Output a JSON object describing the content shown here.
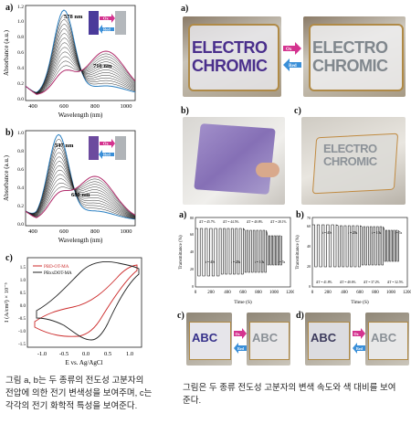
{
  "left": {
    "panel_a": {
      "label": "a)",
      "ylabel": "Absorbance (a.u.)",
      "xlabel": "Wavelength (nm)",
      "peak1": "578 nm",
      "peak2": "716 nm",
      "ox": "Ox",
      "red": "Red",
      "xticks": [
        "400",
        "600",
        "800",
        "1000"
      ],
      "yticks": [
        "0.0",
        "0.2",
        "0.4",
        "0.6",
        "0.8",
        "1.0",
        "1.2"
      ]
    },
    "panel_b": {
      "label": "b)",
      "ylabel": "Absorbance (a.u.)",
      "xlabel": "Wavelength (nm)",
      "peak1": "547 nm",
      "peak2": "680 nm",
      "ox": "Ox",
      "red": "Red",
      "xticks": [
        "400",
        "600",
        "800",
        "1000"
      ],
      "yticks": [
        "0.0",
        "0.2",
        "0.4",
        "0.6",
        "0.8",
        "1.0"
      ]
    },
    "panel_c": {
      "label": "c)",
      "legend": [
        "PBD-OT-MA",
        "PBxxDOT-MA"
      ],
      "ylabel": "I (A/cm²) × 10⁻⁵",
      "xlabel": "E vs. Ag/AgCl",
      "xticks": [
        "-1.0",
        "-0.5",
        "0.0",
        "0.5",
        "1.0"
      ],
      "yticks": [
        "-1.5",
        "-1.0",
        "-0.5",
        "0.0",
        "0.5",
        "1.0",
        "1.5"
      ]
    },
    "caption": [
      "그림 a, b는 두 종류의 전도성 고분자의",
      "전압에 의한 전기 변색성을 보여주며, c는",
      "각각의 전기 화학적 특성을 보여준다."
    ]
  },
  "right": {
    "photo_a": {
      "label": "a)",
      "line1": "ELECTRO",
      "line2": "CHROMIC",
      "ox": "Ox",
      "red": "Red"
    },
    "photo_b": {
      "label": "b)"
    },
    "photo_c": {
      "label": "c)",
      "line1": "ELECTRO",
      "line2": "CHROMIC"
    },
    "graph_a": {
      "label": "a)",
      "ylabel": "Transmittance (%)",
      "xlabel": "Time (S)",
      "deltas": [
        "ΔT = 45.7%",
        "ΔT = 44.5%",
        "ΔT = 40.8%",
        "ΔT = 28.1%"
      ],
      "periods": [
        "t = 40s",
        "t = 20s",
        "t = 10s",
        "t = 5s"
      ],
      "xticks": [
        "0",
        "200",
        "400",
        "600",
        "800",
        "1000",
        "1200"
      ],
      "yticks": [
        "0",
        "10",
        "20",
        "30",
        "40",
        "50",
        "60",
        "70",
        "80"
      ]
    },
    "graph_b": {
      "label": "b)",
      "ylabel": "Transmittance (%)",
      "xlabel": "Time (S)",
      "deltas": [
        "ΔT = 41.8%",
        "ΔT = 40.6%",
        "ΔT = 37.2%",
        "ΔT = 32.5%"
      ],
      "periods": [
        "t = 40s",
        "t = 20s",
        "t = 10s",
        "t = 5s"
      ],
      "xticks": [
        "0",
        "200",
        "400",
        "600",
        "800",
        "1000",
        "1200"
      ],
      "yticks": [
        "0",
        "10",
        "20",
        "30",
        "40",
        "50",
        "60",
        "70"
      ]
    },
    "photo_abc_c": {
      "label": "c)",
      "text": "ABC",
      "ox": "Ox",
      "red": "Red"
    },
    "photo_abc_d": {
      "label": "d)",
      "text": "ABC",
      "ox": "Ox",
      "red": "Red"
    },
    "caption": [
      "그림은 두 종류 전도성 고분자의 변색 속도와 색 대비를 보여",
      "준다."
    ]
  },
  "colors": {
    "purple": "#5a3a8e",
    "grey_text": "#8a8f94",
    "blue_curve": "#2a7fc1",
    "red_curve": "#cc2a2a",
    "magenta_arrow": "#d4338f",
    "blue_arrow": "#3a8fd8"
  }
}
